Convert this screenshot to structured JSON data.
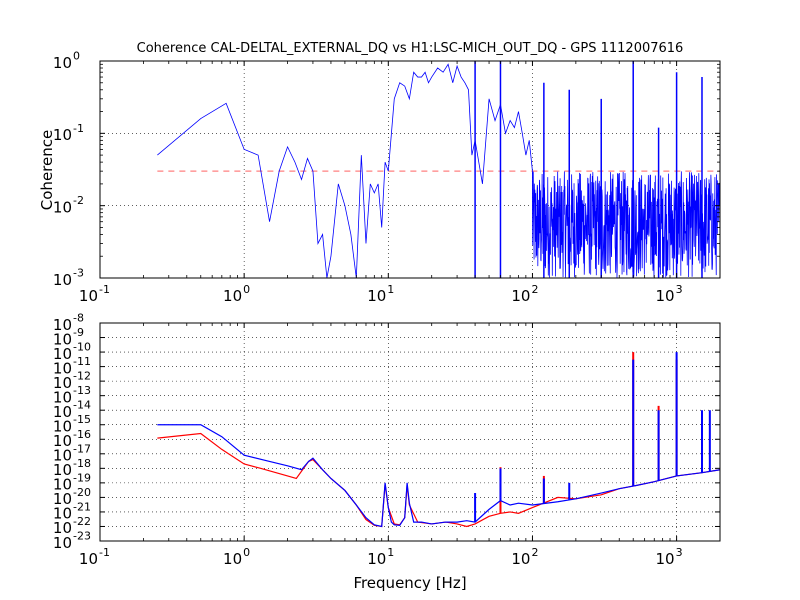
{
  "chart_data": [
    {
      "type": "line",
      "title": "Coherence CAL-DELTAL_EXTERNAL_DQ vs H1:LSC-MICH_OUT_DQ - GPS 1112007616",
      "xlabel": "",
      "ylabel": "Coherence",
      "xscale": "log",
      "yscale": "log",
      "xlim": [
        0.1,
        2000
      ],
      "ylim": [
        0.001,
        1
      ],
      "grid": true,
      "x_ticks": [
        {
          "value": 0.1,
          "base": "10",
          "exp": "-1"
        },
        {
          "value": 1,
          "base": "10",
          "exp": "0"
        },
        {
          "value": 10,
          "base": "10",
          "exp": "1"
        },
        {
          "value": 100,
          "base": "10",
          "exp": "2"
        },
        {
          "value": 1000,
          "base": "10",
          "exp": "3"
        }
      ],
      "y_ticks": [
        {
          "value": 0.001,
          "base": "10",
          "exp": "-3"
        },
        {
          "value": 0.01,
          "base": "10",
          "exp": "-2"
        },
        {
          "value": 0.1,
          "base": "10",
          "exp": "-1"
        },
        {
          "value": 1,
          "base": "10",
          "exp": "0"
        }
      ],
      "threshold": {
        "value": 0.03,
        "color": "#ff8080",
        "style": "dashed"
      },
      "series": [
        {
          "color": "#0000ff",
          "x": [
            0.25,
            0.5,
            0.75,
            1.0,
            1.25,
            1.5,
            1.75,
            2.0,
            2.25,
            2.5,
            2.75,
            3.0,
            3.25,
            3.5,
            3.75,
            4.0,
            4.5,
            5.0,
            5.5,
            6.0,
            6.5,
            7.0,
            7.5,
            8.0,
            8.5,
            9.0,
            9.5,
            10.0,
            11,
            12,
            13,
            14,
            15,
            16,
            17,
            18,
            19,
            20,
            22,
            24,
            26,
            28,
            30,
            32,
            34,
            36,
            38,
            40,
            45,
            50,
            55,
            60,
            65,
            70,
            75,
            80,
            85,
            90,
            95,
            100
          ],
          "values": [
            0.05,
            0.16,
            0.26,
            0.06,
            0.05,
            0.006,
            0.03,
            0.065,
            0.04,
            0.023,
            0.045,
            0.03,
            0.003,
            0.004,
            0.001,
            0.002,
            0.02,
            0.01,
            0.004,
            0.001,
            0.05,
            0.003,
            0.02,
            0.015,
            0.02,
            0.005,
            0.04,
            0.03,
            0.3,
            0.5,
            0.45,
            0.3,
            0.7,
            0.6,
            0.6,
            0.7,
            0.5,
            0.6,
            0.8,
            0.7,
            0.9,
            0.5,
            0.85,
            0.6,
            0.5,
            0.4,
            0.05,
            0.08,
            0.02,
            0.3,
            0.15,
            0.25,
            0.1,
            0.15,
            0.12,
            0.2,
            0.1,
            0.05,
            0.08,
            0.03
          ],
          "noise_floor": {
            "from_hz": 100,
            "to_hz": 2000,
            "low": 0.001,
            "high": 0.03
          },
          "peaks": [
            {
              "x": 40,
              "y": 1.0
            },
            {
              "x": 60,
              "y": 1.0
            },
            {
              "x": 120,
              "y": 0.5
            },
            {
              "x": 180,
              "y": 0.4
            },
            {
              "x": 300,
              "y": 0.3
            },
            {
              "x": 500,
              "y": 1.0
            },
            {
              "x": 750,
              "y": 0.12
            },
            {
              "x": 1000,
              "y": 0.7
            },
            {
              "x": 1500,
              "y": 0.6
            }
          ]
        }
      ]
    },
    {
      "type": "line",
      "title": "",
      "xlabel": "Frequency [Hz]",
      "ylabel": "",
      "xscale": "log",
      "yscale": "log",
      "xlim": [
        0.1,
        2000
      ],
      "ylim": [
        1e-23,
        1e-08
      ],
      "grid": true,
      "x_ticks": [
        {
          "value": 0.1,
          "base": "10",
          "exp": "-1"
        },
        {
          "value": 1,
          "base": "10",
          "exp": "0"
        },
        {
          "value": 10,
          "base": "10",
          "exp": "1"
        },
        {
          "value": 100,
          "base": "10",
          "exp": "2"
        },
        {
          "value": 1000,
          "base": "10",
          "exp": "3"
        }
      ],
      "y_ticks": [
        {
          "value": 1e-23,
          "base": "10",
          "exp": "-23"
        },
        {
          "value": 1e-22,
          "base": "10",
          "exp": "-22"
        },
        {
          "value": 1e-21,
          "base": "10",
          "exp": "-21"
        },
        {
          "value": 1e-20,
          "base": "10",
          "exp": "-20"
        },
        {
          "value": 1e-19,
          "base": "10",
          "exp": "-19"
        },
        {
          "value": 1e-18,
          "base": "10",
          "exp": "-18"
        },
        {
          "value": 1e-17,
          "base": "10",
          "exp": "-17"
        },
        {
          "value": 1e-16,
          "base": "10",
          "exp": "-16"
        },
        {
          "value": 1e-15,
          "base": "10",
          "exp": "-15"
        },
        {
          "value": 1e-14,
          "base": "10",
          "exp": "-14"
        },
        {
          "value": 1e-13,
          "base": "10",
          "exp": "-13"
        },
        {
          "value": 1e-12,
          "base": "10",
          "exp": "-12"
        },
        {
          "value": 1e-11,
          "base": "10",
          "exp": "-11"
        },
        {
          "value": 1e-10,
          "base": "10",
          "exp": "-10"
        },
        {
          "value": 1e-09,
          "base": "10",
          "exp": "-9"
        },
        {
          "value": 1e-08,
          "base": "10",
          "exp": "-8"
        }
      ],
      "series": [
        {
          "color": "#0000ff",
          "x": [
            0.25,
            0.5,
            0.7,
            1.0,
            1.5,
            2.0,
            2.5,
            2.8,
            3.0,
            3.5,
            4.0,
            5.0,
            6.0,
            7.0,
            8.0,
            9.0,
            9.5,
            10.0,
            10.5,
            11,
            12,
            13,
            13.5,
            14,
            15,
            17,
            20,
            25,
            30,
            35,
            40,
            50,
            60,
            70,
            80,
            100,
            150,
            200,
            300,
            400,
            500,
            700,
            1000,
            1500,
            2000
          ],
          "values": [
            1e-15,
            1e-15,
            1.5e-16,
            8e-18,
            3e-18,
            1.5e-18,
            8e-19,
            3e-18,
            5e-18,
            8e-19,
            2e-19,
            3e-20,
            3e-21,
            4e-22,
            1.3e-22,
            1e-22,
            1e-19,
            2e-21,
            2e-22,
            1.3e-22,
            1.2e-22,
            4e-22,
            1e-19,
            4e-21,
            2e-22,
            2e-22,
            1.5e-22,
            2e-22,
            2e-22,
            2.5e-22,
            2e-22,
            1.5e-21,
            6e-21,
            3e-21,
            4e-21,
            3e-21,
            5e-21,
            8e-21,
            2e-20,
            4e-20,
            6e-20,
            1.2e-19,
            3e-19,
            5e-19,
            8e-19
          ],
          "peaks": [
            {
              "x": 40,
              "y": 2e-20
            },
            {
              "x": 60,
              "y": 1e-18
            },
            {
              "x": 120,
              "y": 2e-19
            },
            {
              "x": 180,
              "y": 1e-19
            },
            {
              "x": 500,
              "y": 3e-11
            },
            {
              "x": 750,
              "y": 1e-14
            },
            {
              "x": 1000,
              "y": 1e-10
            },
            {
              "x": 1500,
              "y": 1e-14
            },
            {
              "x": 1700,
              "y": 1e-14
            }
          ]
        },
        {
          "color": "#ff0000",
          "x": [
            0.25,
            0.5,
            0.7,
            1.0,
            1.3,
            2.0,
            2.3,
            2.8,
            3.0,
            3.5,
            4.0,
            5.0,
            6.0,
            7.0,
            8.0,
            9.0,
            9.5,
            10.0,
            11,
            12,
            13,
            13.5,
            14,
            16,
            20,
            25,
            30,
            35,
            40,
            50,
            60,
            70,
            80,
            100,
            150,
            200,
            300,
            400,
            500,
            700,
            1000,
            1500,
            2000
          ],
          "values": [
            1.2e-16,
            2.5e-16,
            2e-17,
            2e-18,
            1e-18,
            3e-19,
            2e-19,
            3e-18,
            4e-18,
            8e-19,
            2e-19,
            3e-20,
            3e-21,
            3e-22,
            1.2e-22,
            1e-22,
            8e-20,
            2e-21,
            1.5e-22,
            1.3e-22,
            4e-22,
            7e-20,
            3e-21,
            2e-22,
            1.5e-22,
            2e-22,
            1.5e-22,
            1e-22,
            1.5e-22,
            5e-22,
            8e-22,
            1e-21,
            8e-22,
            2e-21,
            1e-20,
            8e-21,
            1.5e-20,
            4e-20,
            6e-20,
            1.2e-19,
            3e-19,
            5e-19,
            8e-19
          ],
          "peaks": [
            {
              "x": 60,
              "y": 1.2e-18
            },
            {
              "x": 120,
              "y": 3e-19
            },
            {
              "x": 500,
              "y": 1e-10
            },
            {
              "x": 750,
              "y": 2e-14
            },
            {
              "x": 1000,
              "y": 3e-11
            }
          ]
        }
      ]
    }
  ]
}
